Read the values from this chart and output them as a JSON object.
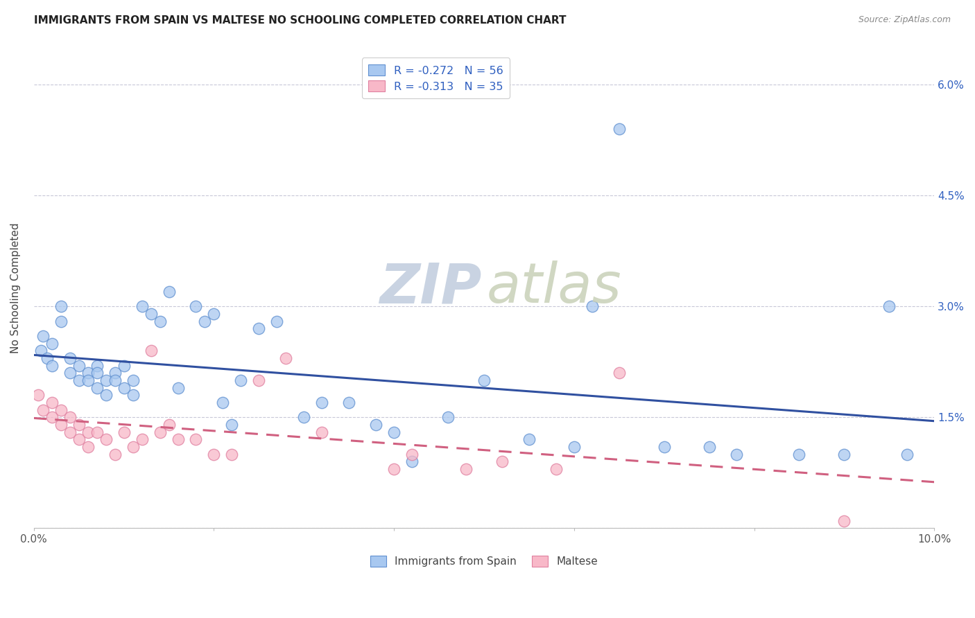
{
  "title": "IMMIGRANTS FROM SPAIN VS MALTESE NO SCHOOLING COMPLETED CORRELATION CHART",
  "source": "Source: ZipAtlas.com",
  "ylabel": "No Schooling Completed",
  "xlim": [
    0.0,
    0.1
  ],
  "ylim": [
    0.0,
    0.065
  ],
  "legend_label1": "R = -0.272   N = 56",
  "legend_label2": "R = -0.313   N = 35",
  "color_spain_face": "#A8C8F0",
  "color_spain_edge": "#6090D0",
  "color_maltese_face": "#F8B8C8",
  "color_maltese_edge": "#E080A0",
  "color_line_spain": "#3050A0",
  "color_line_maltese": "#D06080",
  "color_legend_text": "#3060C0",
  "color_grid": "#C8C8D8",
  "spain_x": [
    0.0008,
    0.001,
    0.0015,
    0.002,
    0.002,
    0.003,
    0.003,
    0.004,
    0.004,
    0.005,
    0.005,
    0.006,
    0.006,
    0.007,
    0.007,
    0.007,
    0.008,
    0.008,
    0.009,
    0.009,
    0.01,
    0.01,
    0.011,
    0.011,
    0.012,
    0.013,
    0.014,
    0.015,
    0.016,
    0.018,
    0.019,
    0.02,
    0.021,
    0.022,
    0.023,
    0.025,
    0.027,
    0.03,
    0.032,
    0.035,
    0.038,
    0.04,
    0.042,
    0.046,
    0.05,
    0.055,
    0.06,
    0.065,
    0.07,
    0.075,
    0.062,
    0.078,
    0.085,
    0.09,
    0.095,
    0.097
  ],
  "spain_y": [
    0.024,
    0.026,
    0.023,
    0.025,
    0.022,
    0.03,
    0.028,
    0.021,
    0.023,
    0.02,
    0.022,
    0.021,
    0.02,
    0.022,
    0.019,
    0.021,
    0.02,
    0.018,
    0.021,
    0.02,
    0.019,
    0.022,
    0.02,
    0.018,
    0.03,
    0.029,
    0.028,
    0.032,
    0.019,
    0.03,
    0.028,
    0.029,
    0.017,
    0.014,
    0.02,
    0.027,
    0.028,
    0.015,
    0.017,
    0.017,
    0.014,
    0.013,
    0.009,
    0.015,
    0.02,
    0.012,
    0.011,
    0.054,
    0.011,
    0.011,
    0.03,
    0.01,
    0.01,
    0.01,
    0.03,
    0.01
  ],
  "maltese_x": [
    0.0005,
    0.001,
    0.002,
    0.002,
    0.003,
    0.003,
    0.004,
    0.004,
    0.005,
    0.005,
    0.006,
    0.006,
    0.007,
    0.008,
    0.009,
    0.01,
    0.011,
    0.012,
    0.013,
    0.014,
    0.015,
    0.016,
    0.018,
    0.02,
    0.022,
    0.025,
    0.028,
    0.032,
    0.04,
    0.042,
    0.048,
    0.052,
    0.058,
    0.065,
    0.09
  ],
  "maltese_y": [
    0.018,
    0.016,
    0.017,
    0.015,
    0.016,
    0.014,
    0.015,
    0.013,
    0.014,
    0.012,
    0.013,
    0.011,
    0.013,
    0.012,
    0.01,
    0.013,
    0.011,
    0.012,
    0.024,
    0.013,
    0.014,
    0.012,
    0.012,
    0.01,
    0.01,
    0.02,
    0.023,
    0.013,
    0.008,
    0.01,
    0.008,
    0.009,
    0.008,
    0.021,
    0.001
  ]
}
